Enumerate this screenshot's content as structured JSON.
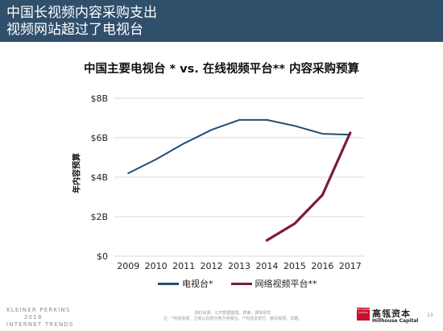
{
  "header": {
    "line1": "中国长视频内容采购支出",
    "line2": "视频网站超过了电视台"
  },
  "chart_data": {
    "type": "line",
    "title": "中国主要电视台 * vs. 在线视频平台** 内容采购预算",
    "ylabel": "年内容预算",
    "xlabel": "",
    "x": [
      2009,
      2010,
      2011,
      2012,
      2013,
      2014,
      2015,
      2016,
      2017
    ],
    "x_tick_labels": [
      "2009",
      "2010",
      "2011",
      "2012",
      "2013",
      "2014",
      "2015",
      "2016",
      "2017"
    ],
    "ylim": [
      0,
      8
    ],
    "y_ticks": [
      0,
      2,
      4,
      6,
      8
    ],
    "y_tick_labels": [
      "$0",
      "$2B",
      "$4B",
      "$6B",
      "$8B"
    ],
    "grid": "horizontal",
    "legend_position": "bottom",
    "series": [
      {
        "name": "电视台*",
        "color": "#1f4e79",
        "values": [
          4.2,
          4.9,
          5.7,
          6.4,
          6.9,
          6.9,
          6.6,
          6.2,
          6.15
        ]
      },
      {
        "name": "网络视频平台**",
        "color": "#7b1c3c",
        "values": [
          null,
          null,
          null,
          null,
          null,
          0.8,
          1.65,
          3.1,
          6.25
        ]
      }
    ]
  },
  "footer": {
    "brand_line1": "KLEINER PERKINS",
    "brand_line2": "2018",
    "brand_line3": "INTERNET TRENDS",
    "source_line1": "资料来源：公开数据整理、搜索、媒体研究",
    "source_line2": "注：*包括央视、卫视以及部分地方电视台。**包括爱奇艺、腾讯视频、优酷。",
    "logo_cn": "高瓴资本",
    "logo_en": "Hillhouse Capital",
    "logo_box_text": "HILLHOUSE CAPITAL",
    "page_number": "13"
  }
}
